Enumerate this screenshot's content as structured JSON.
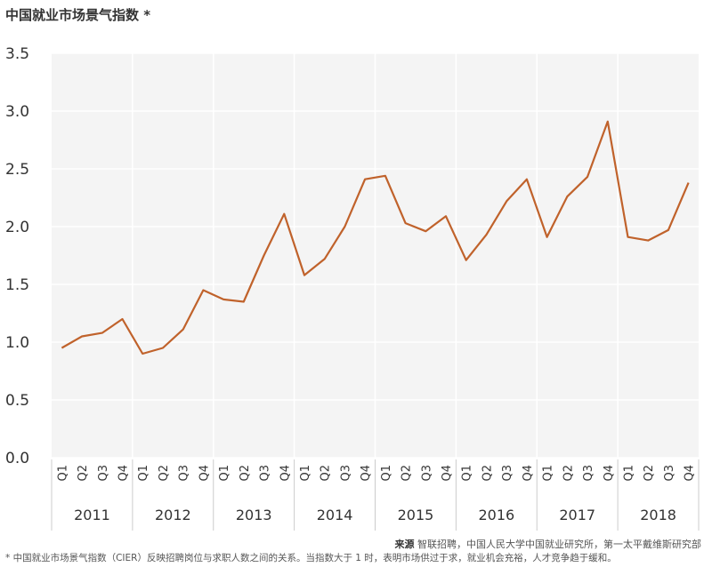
{
  "title": "中国就业市场景气指数 *",
  "source_label": "来源",
  "source_text": "智联招聘，中国人民大学中国就业研究所，第一太平戴维斯研究部",
  "footnote": "* 中国就业市场景气指数（CIER）反映招聘岗位与求职人数之间的关系。当指数大于 1 时，表明市场供过于求，就业机会充裕，人才竞争趋于缓和。",
  "colors": {
    "line": "#c0622b",
    "plot_bg": "#f4f4f4",
    "grid": "#ffffff"
  },
  "chart_data": {
    "type": "line",
    "title": "中国就业市场景气指数 *",
    "xlabel": "",
    "ylabel": "",
    "ylim": [
      0,
      3.5
    ],
    "yticks": [
      "0.0",
      "0.5",
      "1.0",
      "1.5",
      "2.0",
      "2.5",
      "3.0",
      "3.5"
    ],
    "grid": true,
    "years": [
      "2011",
      "2012",
      "2013",
      "2014",
      "2015",
      "2016",
      "2017",
      "2018"
    ],
    "quarters": [
      "Q1",
      "Q2",
      "Q3",
      "Q4"
    ],
    "series": [
      {
        "values": [
          0.95,
          1.05,
          1.08,
          1.2,
          0.9,
          0.95,
          1.11,
          1.45,
          1.37,
          1.35,
          1.75,
          2.11,
          1.58,
          1.72,
          2.0,
          2.41,
          2.44,
          2.03,
          1.96,
          2.09,
          1.71,
          1.93,
          2.22,
          2.41,
          1.91,
          2.26,
          2.43,
          2.91,
          1.91,
          1.88,
          1.97,
          2.38
        ]
      }
    ]
  }
}
